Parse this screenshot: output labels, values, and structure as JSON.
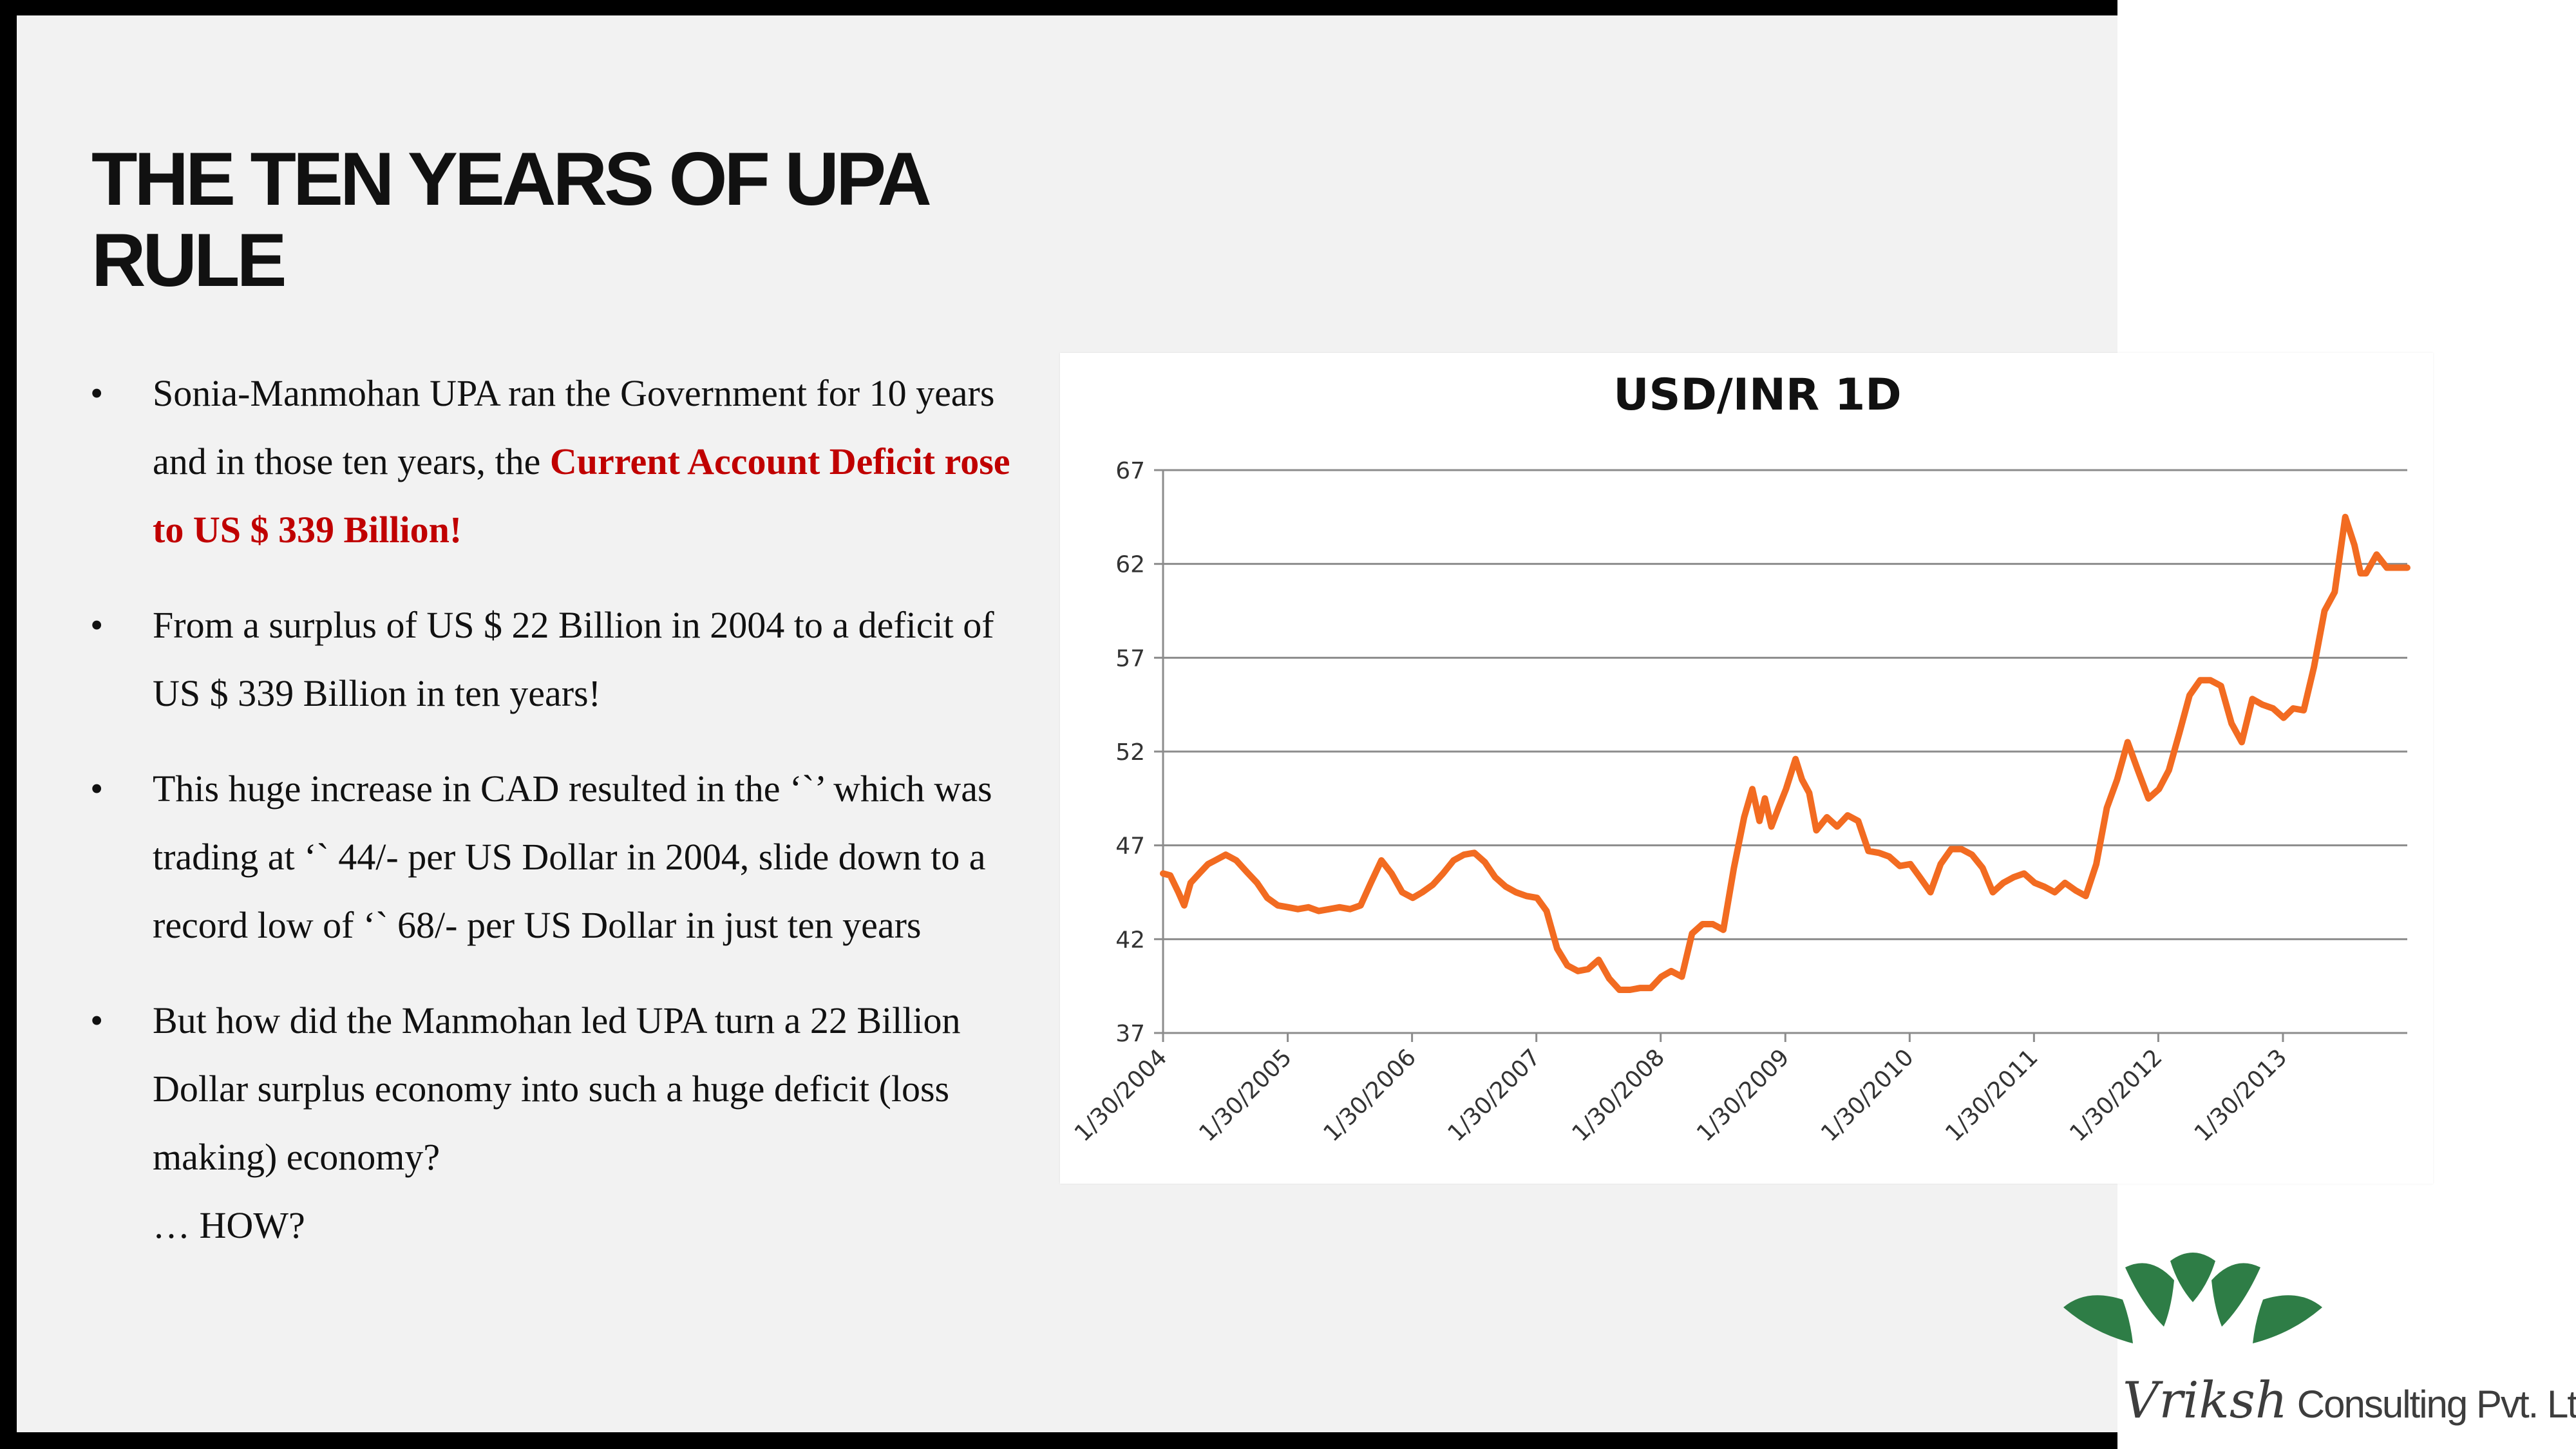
{
  "slide": {
    "title_line1": "THE TEN YEARS OF UPA",
    "title_line2": "RULE",
    "bullets": [
      {
        "before": "Sonia-Manmohan UPA ran the Government for 10 years and in those ten years, the ",
        "highlight": "Current Account Deficit rose to US $ 339 Billion!"
      },
      {
        "text": "From a surplus of US $ 22 Billion in 2004 to a deficit of US $ 339 Billion in ten years!"
      },
      {
        "text": "This huge increase in CAD resulted in the ‘`’ which was trading at ‘` 44/- per US Dollar in 2004, slide down to a record low of ‘` 68/- per US Dollar in just ten years"
      },
      {
        "text": "But how did the Manmohan led UPA turn a 22 Billion Dollar surplus economy into such a huge deficit (loss making) economy?",
        "extra": "… HOW?"
      }
    ],
    "bullet_symbol": "•"
  },
  "logo": {
    "script": "Vriksh",
    "rest": " Consulting Pvt. Ltd",
    "color": "#2e7d46",
    "icon": "tree-canopy-logo-icon"
  },
  "chart_data": {
    "type": "line",
    "title": "USD/INR 1D",
    "xlabel": "",
    "ylabel": "",
    "ylim": [
      37,
      67
    ],
    "xlim": [
      "1/30/2004",
      "1/30/2014"
    ],
    "yticks": [
      37,
      42,
      47,
      52,
      57,
      62,
      67
    ],
    "xticks": [
      "1/30/2004",
      "1/30/2005",
      "1/30/2006",
      "1/30/2007",
      "1/30/2008",
      "1/30/2009",
      "1/30/2010",
      "1/30/2011",
      "1/30/2012",
      "1/30/2013"
    ],
    "grid": "horizontal",
    "legend": "none",
    "line_color": "#f26b21",
    "series": [
      {
        "x": [
          "2004-01-30",
          "2004-02-20",
          "2004-03-15",
          "2004-04-01",
          "2004-04-20",
          "2004-05-15",
          "2004-06-10",
          "2004-07-01",
          "2004-08-01",
          "2004-09-01",
          "2004-10-01",
          "2004-11-01",
          "2004-12-01",
          "2005-01-01",
          "2005-02-01",
          "2005-03-01",
          "2005-04-01",
          "2005-05-01",
          "2005-06-01",
          "2005-07-01",
          "2005-08-01",
          "2005-09-01",
          "2005-10-01",
          "2005-11-01",
          "2005-12-01",
          "2006-01-01",
          "2006-02-01",
          "2006-03-01",
          "2006-04-01",
          "2006-05-01",
          "2006-06-01",
          "2006-07-01",
          "2006-08-01",
          "2006-09-01",
          "2006-10-01",
          "2006-11-01",
          "2006-12-01",
          "2007-01-01",
          "2007-02-01",
          "2007-03-01",
          "2007-04-01",
          "2007-05-01",
          "2007-06-01",
          "2007-07-01",
          "2007-08-01",
          "2007-09-01",
          "2007-10-01",
          "2007-11-01",
          "2007-12-01",
          "2008-01-01",
          "2008-02-01",
          "2008-03-01",
          "2008-04-01",
          "2008-05-01",
          "2008-06-01",
          "2008-07-01",
          "2008-08-01",
          "2008-09-01",
          "2008-10-01",
          "2008-10-25",
          "2008-11-15",
          "2008-12-01",
          "2008-12-20",
          "2009-01-10",
          "2009-02-01",
          "2009-03-01",
          "2009-03-20",
          "2009-04-10",
          "2009-05-01",
          "2009-06-01",
          "2009-07-01",
          "2009-08-01",
          "2009-09-01",
          "2009-10-01",
          "2009-11-01",
          "2009-12-01",
          "2010-01-01",
          "2010-02-01",
          "2010-03-01",
          "2010-04-01",
          "2010-05-01",
          "2010-06-01",
          "2010-07-01",
          "2010-08-01",
          "2010-09-01",
          "2010-10-01",
          "2010-11-01",
          "2010-12-01",
          "2011-01-01",
          "2011-02-01",
          "2011-03-01",
          "2011-04-01",
          "2011-05-01",
          "2011-06-01",
          "2011-07-01",
          "2011-08-01",
          "2011-09-01",
          "2011-10-01",
          "2011-11-01",
          "2011-12-01",
          "2012-01-01",
          "2012-02-01",
          "2012-03-01",
          "2012-04-01",
          "2012-05-01",
          "2012-06-01",
          "2012-07-01",
          "2012-08-01",
          "2012-09-01",
          "2012-10-01",
          "2012-11-01",
          "2012-12-01",
          "2013-01-01",
          "2013-02-01",
          "2013-03-01",
          "2013-04-01",
          "2013-05-01",
          "2013-06-01",
          "2013-07-01",
          "2013-08-01",
          "2013-08-28",
          "2013-09-15",
          "2013-10-01",
          "2013-11-01",
          "2013-12-01",
          "2014-01-01",
          "2014-01-30"
        ],
        "y": [
          45.5,
          45.4,
          44.5,
          43.8,
          45.0,
          45.5,
          46.0,
          46.2,
          46.5,
          46.2,
          45.6,
          45.0,
          44.2,
          43.8,
          43.7,
          43.6,
          43.7,
          43.5,
          43.6,
          43.7,
          43.6,
          43.8,
          45.0,
          46.2,
          45.5,
          44.5,
          44.2,
          44.5,
          44.9,
          45.5,
          46.2,
          46.5,
          46.6,
          46.1,
          45.3,
          44.8,
          44.5,
          44.3,
          44.2,
          43.5,
          41.5,
          40.6,
          40.3,
          40.4,
          40.9,
          39.9,
          39.3,
          39.3,
          39.4,
          39.4,
          40.0,
          40.3,
          40.0,
          42.3,
          42.8,
          42.8,
          42.5,
          45.8,
          48.5,
          50.0,
          48.3,
          49.5,
          48.0,
          49.0,
          50.0,
          51.6,
          50.5,
          49.8,
          47.8,
          48.5,
          48.0,
          48.6,
          48.3,
          46.7,
          46.6,
          46.4,
          45.9,
          46.0,
          45.3,
          44.5,
          46.0,
          46.8,
          46.8,
          46.5,
          45.8,
          44.5,
          45.0,
          45.3,
          45.5,
          45.0,
          44.8,
          44.5,
          45.0,
          44.6,
          44.3,
          46.0,
          49.0,
          50.5,
          52.5,
          51.0,
          49.5,
          50.0,
          51.0,
          53.0,
          55.0,
          55.8,
          55.8,
          55.5,
          53.5,
          52.5,
          54.8,
          54.5,
          54.3,
          53.8,
          54.3,
          54.2,
          56.5,
          59.5,
          60.5,
          64.5,
          63.0,
          61.5,
          61.5,
          62.5,
          61.8,
          61.8,
          61.8
        ]
      }
    ]
  }
}
